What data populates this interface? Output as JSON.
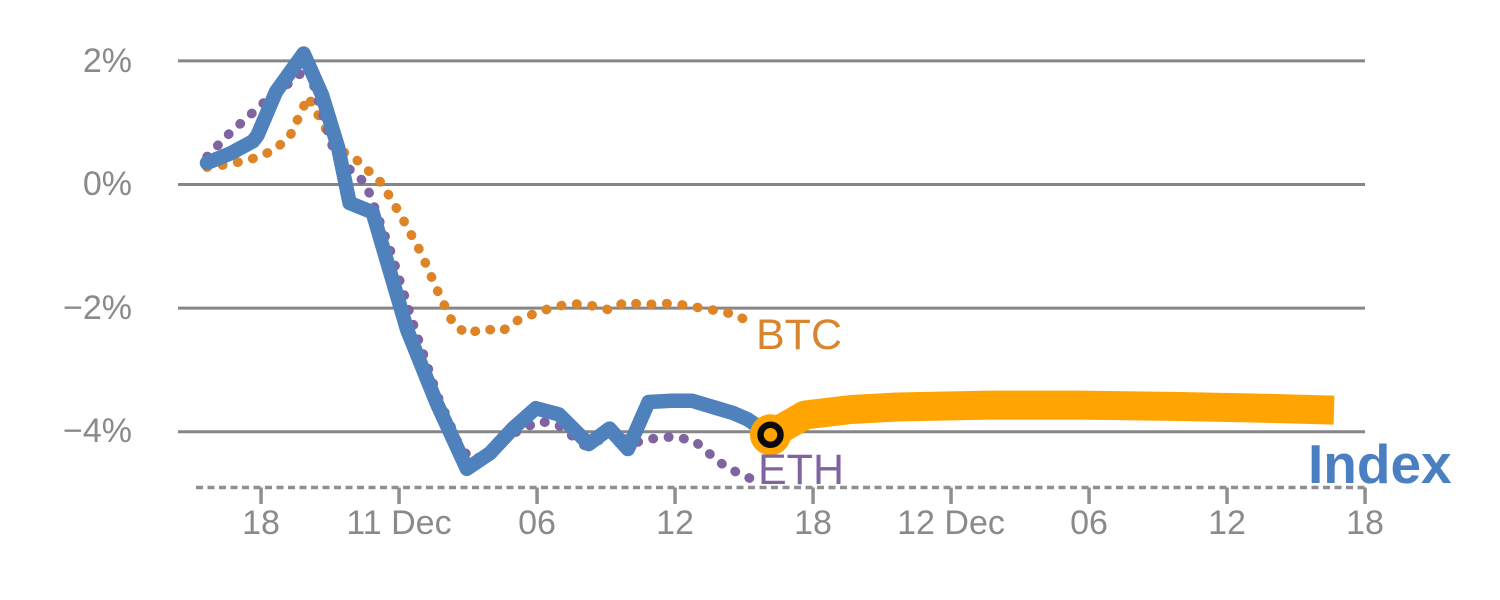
{
  "chart_data": {
    "type": "line",
    "description": "Percent change of crypto Index vs BTC and ETH, with projected Index band after current-time marker",
    "grid_on": true,
    "grid_color": "#868686",
    "axis_line_color": "#8f8f8f",
    "tick_label_color": "#8a8a8a",
    "background": "#ffffff",
    "ylim": [
      -4.9,
      2.3
    ],
    "x_unit": "hours from series start (Dec 10 ~16:00)",
    "yticks": [
      {
        "label": "2%",
        "value": 2
      },
      {
        "label": "0%",
        "value": 0
      },
      {
        "label": "−2%",
        "value": -2
      },
      {
        "label": "−4%",
        "value": -4
      }
    ],
    "xticks": [
      {
        "label": "18",
        "t": 2.35
      },
      {
        "label": "11 Dec",
        "t": 8.35
      },
      {
        "label": "06",
        "t": 14.35
      },
      {
        "label": "12",
        "t": 20.35
      },
      {
        "label": "18",
        "t": 26.35
      },
      {
        "label": "12 Dec",
        "t": 32.35
      },
      {
        "label": "06",
        "t": 38.35
      },
      {
        "label": "12",
        "t": 44.35
      },
      {
        "label": "18",
        "t": 50.35
      }
    ],
    "series": [
      {
        "name": "BTC",
        "style": "dotted",
        "color": "#dd8427",
        "width": 9.5,
        "points": [
          [
            0,
            0.28
          ],
          [
            1,
            0.33
          ],
          [
            2,
            0.42
          ],
          [
            2.9,
            0.55
          ],
          [
            3.6,
            0.78
          ],
          [
            4.4,
            1.42
          ],
          [
            5.6,
            0.6
          ],
          [
            6.5,
            0.4
          ],
          [
            7.6,
            0.02
          ],
          [
            8.5,
            -0.55
          ],
          [
            9.3,
            -1.1
          ],
          [
            10,
            -1.7
          ],
          [
            10.7,
            -2.25
          ],
          [
            11.3,
            -2.42
          ],
          [
            12,
            -2.33
          ],
          [
            12.8,
            -2.38
          ],
          [
            13.5,
            -2.2
          ],
          [
            14.3,
            -2.08
          ],
          [
            15.2,
            -1.97
          ],
          [
            16,
            -1.93
          ],
          [
            16.9,
            -1.97
          ],
          [
            17.5,
            -2.03
          ],
          [
            18.2,
            -1.9
          ],
          [
            19,
            -1.95
          ],
          [
            19.8,
            -1.92
          ],
          [
            20.7,
            -1.95
          ],
          [
            21.5,
            -2.0
          ],
          [
            22.3,
            -2.05
          ],
          [
            23.1,
            -2.12
          ],
          [
            23.8,
            -2.3
          ]
        ]
      },
      {
        "name": "ETH",
        "style": "dotted",
        "color": "#8064a2",
        "width": 9.5,
        "points": [
          [
            0,
            0.45
          ],
          [
            0.9,
            0.8
          ],
          [
            1.8,
            1.1
          ],
          [
            2.7,
            1.4
          ],
          [
            3.6,
            1.65
          ],
          [
            4.4,
            1.9
          ],
          [
            5.6,
            0.44
          ],
          [
            6.9,
            0.02
          ],
          [
            8,
            -1.1
          ],
          [
            9,
            -2.3
          ],
          [
            10,
            -3.4
          ],
          [
            11,
            -4.25
          ],
          [
            11.5,
            -4.45
          ],
          [
            12.2,
            -4.38
          ],
          [
            13,
            -4.1
          ],
          [
            13.7,
            -3.95
          ],
          [
            14.5,
            -3.83
          ],
          [
            15.3,
            -3.9
          ],
          [
            16.4,
            -4.22
          ],
          [
            17.2,
            -4.12
          ],
          [
            17.8,
            -4.0
          ],
          [
            18.4,
            -4.2
          ],
          [
            19.2,
            -4.12
          ],
          [
            20.3,
            -4.08
          ],
          [
            21.2,
            -4.15
          ],
          [
            22.3,
            -4.5
          ],
          [
            23,
            -4.65
          ],
          [
            23.7,
            -4.77
          ]
        ]
      },
      {
        "name": "Index",
        "style": "solid",
        "color": "#4f81bd",
        "width": 14.5,
        "points": [
          [
            0,
            0.35
          ],
          [
            1,
            0.5
          ],
          [
            2,
            0.7
          ],
          [
            2.2,
            0.8
          ],
          [
            3,
            1.5
          ],
          [
            4.2,
            2.12
          ],
          [
            5,
            1.45
          ],
          [
            5.7,
            0.6
          ],
          [
            6.2,
            -0.3
          ],
          [
            7.2,
            -0.45
          ],
          [
            8.7,
            -2.35
          ],
          [
            10,
            -3.55
          ],
          [
            11.3,
            -4.6
          ],
          [
            12.3,
            -4.35
          ],
          [
            13.3,
            -3.95
          ],
          [
            14.3,
            -3.62
          ],
          [
            15.3,
            -3.72
          ],
          [
            16.6,
            -4.2
          ],
          [
            17.5,
            -3.95
          ],
          [
            18.3,
            -4.28
          ],
          [
            19.2,
            -3.52
          ],
          [
            20.2,
            -3.5
          ],
          [
            21.1,
            -3.5
          ],
          [
            22,
            -3.6
          ],
          [
            22.9,
            -3.7
          ],
          [
            23.5,
            -3.8
          ],
          [
            24.5,
            -4.05
          ]
        ]
      },
      {
        "name": "Index",
        "segment": "projection",
        "style": "thick",
        "color": "#ffa400",
        "width": 29,
        "points": [
          [
            24.5,
            -4.05
          ],
          [
            26,
            -3.73
          ],
          [
            28,
            -3.64
          ],
          [
            30,
            -3.6
          ],
          [
            34,
            -3.57
          ],
          [
            38,
            -3.57
          ],
          [
            42,
            -3.59
          ],
          [
            46,
            -3.62
          ],
          [
            49,
            -3.65
          ]
        ]
      }
    ],
    "current_point_marker": {
      "t": 24.5,
      "value": -4.05,
      "fill": "#ffa400",
      "ring": "#0a0a0a"
    },
    "series_labels": {
      "btc": "BTC",
      "eth": "ETH",
      "index": "Index"
    }
  }
}
